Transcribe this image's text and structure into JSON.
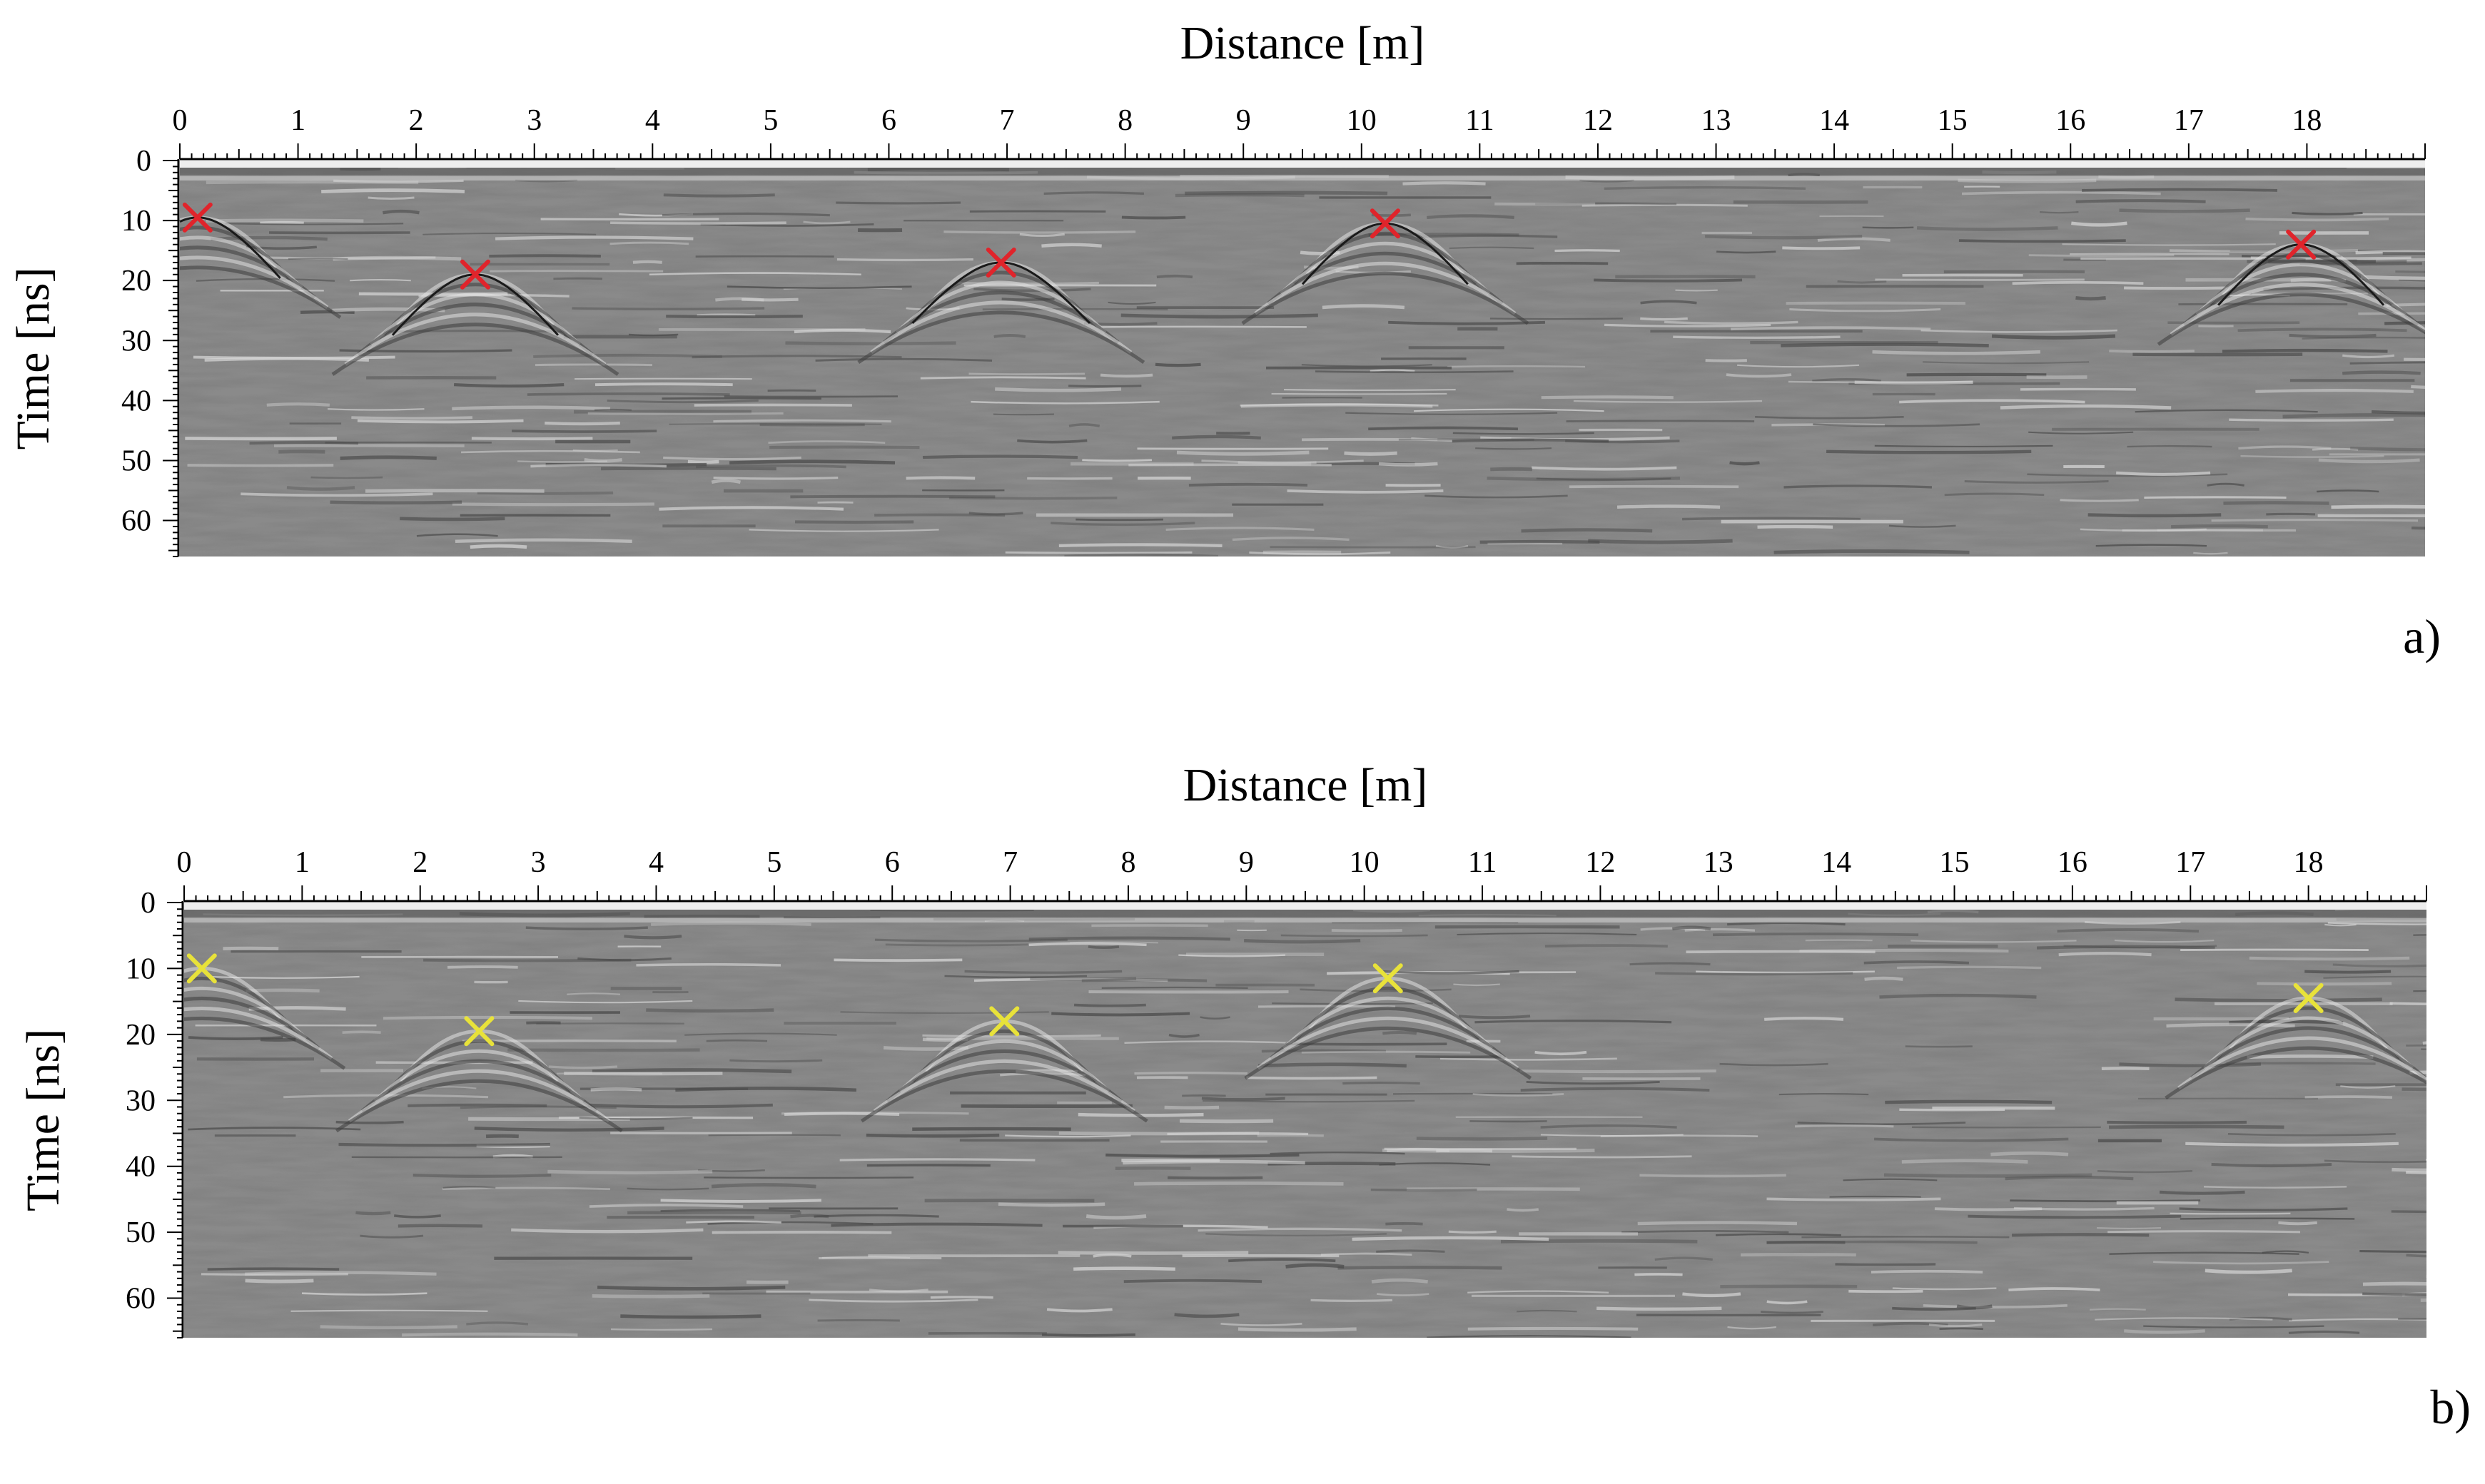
{
  "figure": {
    "panels": [
      {
        "id": "a",
        "label": "a)"
      },
      {
        "id": "b",
        "label": "b)"
      }
    ]
  },
  "chart_data": [
    {
      "type": "scatter",
      "panel": "a)",
      "xlabel": "Distance [m]",
      "ylabel": "Time [ns]",
      "xlim": [
        0,
        19
      ],
      "ylim": [
        66,
        0
      ],
      "x_ticks": [
        0,
        1,
        2,
        3,
        4,
        5,
        6,
        7,
        8,
        9,
        10,
        11,
        12,
        13,
        14,
        15,
        16,
        17,
        18
      ],
      "y_ticks": [
        0,
        10,
        20,
        30,
        40,
        50,
        60
      ],
      "background": "GPR radargram (grayscale reflection image)",
      "marker_color": "#e0242b",
      "hyperbola_color": "#1a1a1a",
      "series": [
        {
          "marker": "x",
          "points": [
            [
              0.15,
              9.5
            ],
            [
              2.5,
              19.0
            ],
            [
              6.95,
              17.0
            ],
            [
              10.2,
              10.5
            ],
            [
              17.95,
              14.0
            ]
          ]
        }
      ],
      "hyperbolas": [
        {
          "apex": [
            0.15,
            9.5
          ],
          "span": [
            0.0,
            0.85
          ]
        },
        {
          "apex": [
            2.5,
            19.0
          ],
          "span": [
            1.8,
            3.2
          ]
        },
        {
          "apex": [
            6.95,
            17.0
          ],
          "span": [
            6.2,
            7.7
          ]
        },
        {
          "apex": [
            10.2,
            10.5
          ],
          "span": [
            9.5,
            10.9
          ]
        },
        {
          "apex": [
            17.95,
            14.0
          ],
          "span": [
            17.25,
            18.65
          ]
        }
      ]
    },
    {
      "type": "scatter",
      "panel": "b)",
      "xlabel": "Distance [m]",
      "ylabel": "Time [ns]",
      "xlim": [
        0,
        19
      ],
      "ylim": [
        66,
        0
      ],
      "x_ticks": [
        0,
        1,
        2,
        3,
        4,
        5,
        6,
        7,
        8,
        9,
        10,
        11,
        12,
        13,
        14,
        15,
        16,
        17,
        18
      ],
      "y_ticks": [
        0,
        10,
        20,
        30,
        40,
        50,
        60
      ],
      "background": "GPR radargram (grayscale reflection image)",
      "marker_color": "#e8e23a",
      "series": [
        {
          "marker": "x",
          "points": [
            [
              0.15,
              10.0
            ],
            [
              2.5,
              19.5
            ],
            [
              6.95,
              18.0
            ],
            [
              10.2,
              11.5
            ],
            [
              18.0,
              14.5
            ]
          ]
        }
      ]
    }
  ]
}
